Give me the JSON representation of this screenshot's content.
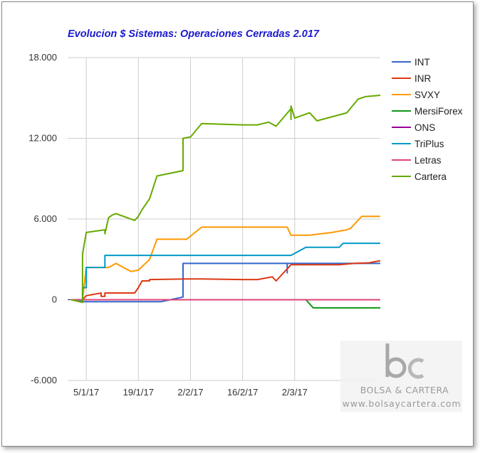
{
  "chart_data": {
    "type": "line",
    "title": "Evolucion $ Sistemas: Operaciones Cerradas 2.017",
    "xlabel": "",
    "ylabel": "",
    "ylim": [
      -6000,
      18000
    ],
    "yticks": [
      {
        "value": 18000,
        "label": "18.000"
      },
      {
        "value": 12000,
        "label": "12.000"
      },
      {
        "value": 6000,
        "label": "6.000"
      },
      {
        "value": 0,
        "label": "0"
      },
      {
        "value": -6000,
        "label": "-6.000"
      }
    ],
    "xrange": [
      "2016-12-31",
      "2017-03-25"
    ],
    "xticks": [
      {
        "date": "2017-01-05",
        "label": "5/1/17"
      },
      {
        "date": "2017-01-19",
        "label": "19/1/17"
      },
      {
        "date": "2017-02-02",
        "label": "2/2/17"
      },
      {
        "date": "2017-02-16",
        "label": "16/2/17"
      },
      {
        "date": "2017-03-02",
        "label": "2/3/17"
      }
    ],
    "grid": true,
    "legend_position": "right",
    "series": [
      {
        "name": "INT",
        "color": "#3366cc",
        "points": [
          [
            "2017-01-01",
            0
          ],
          [
            "2017-01-04",
            -150
          ],
          [
            "2017-01-25",
            -150
          ],
          [
            "2017-01-31",
            200
          ],
          [
            "2017-01-31",
            2700
          ],
          [
            "2017-02-28",
            2700
          ],
          [
            "2017-02-28",
            2000
          ],
          [
            "2017-02-28",
            2700
          ],
          [
            "2017-03-25",
            2700
          ]
        ]
      },
      {
        "name": "INR",
        "color": "#dc3912",
        "points": [
          [
            "2017-01-01",
            0
          ],
          [
            "2017-01-04",
            0
          ],
          [
            "2017-01-05",
            300
          ],
          [
            "2017-01-09",
            500
          ],
          [
            "2017-01-09",
            250
          ],
          [
            "2017-01-10",
            250
          ],
          [
            "2017-01-10",
            500
          ],
          [
            "2017-01-18",
            500
          ],
          [
            "2017-01-19",
            900
          ],
          [
            "2017-01-20",
            1400
          ],
          [
            "2017-01-22",
            1400
          ],
          [
            "2017-01-22",
            1500
          ],
          [
            "2017-02-02",
            1550
          ],
          [
            "2017-02-05",
            1550
          ],
          [
            "2017-02-16",
            1500
          ],
          [
            "2017-02-20",
            1500
          ],
          [
            "2017-02-24",
            1700
          ],
          [
            "2017-02-25",
            1400
          ],
          [
            "2017-03-01",
            2600
          ],
          [
            "2017-03-10",
            2600
          ],
          [
            "2017-03-14",
            2600
          ],
          [
            "2017-03-18",
            2700
          ],
          [
            "2017-03-22",
            2750
          ],
          [
            "2017-03-25",
            2900
          ]
        ]
      },
      {
        "name": "SVXY",
        "color": "#ff9900",
        "points": [
          [
            "2017-01-01",
            0
          ],
          [
            "2017-01-04",
            0
          ],
          [
            "2017-01-05",
            2400
          ],
          [
            "2017-01-11",
            2400
          ],
          [
            "2017-01-13",
            2700
          ],
          [
            "2017-01-17",
            2100
          ],
          [
            "2017-01-19",
            2200
          ],
          [
            "2017-01-22",
            3000
          ],
          [
            "2017-01-24",
            4500
          ],
          [
            "2017-02-01",
            4500
          ],
          [
            "2017-02-05",
            5400
          ],
          [
            "2017-02-28",
            5400
          ],
          [
            "2017-03-01",
            4800
          ],
          [
            "2017-03-06",
            4800
          ],
          [
            "2017-03-12",
            5000
          ],
          [
            "2017-03-16",
            5200
          ],
          [
            "2017-03-17",
            5300
          ],
          [
            "2017-03-20",
            6200
          ],
          [
            "2017-03-25",
            6200
          ]
        ]
      },
      {
        "name": "MersiForex",
        "color": "#109618",
        "points": [
          [
            "2017-01-01",
            0
          ],
          [
            "2017-03-05",
            0
          ],
          [
            "2017-03-07",
            -600
          ],
          [
            "2017-03-25",
            -600
          ]
        ]
      },
      {
        "name": "ONS",
        "color": "#990099",
        "points": [
          [
            "2017-01-01",
            0
          ],
          [
            "2017-03-25",
            0
          ]
        ]
      },
      {
        "name": "TriPlus",
        "color": "#0099c6",
        "points": [
          [
            "2017-01-01",
            0
          ],
          [
            "2017-01-04",
            -100
          ],
          [
            "2017-01-04",
            900
          ],
          [
            "2017-01-05",
            900
          ],
          [
            "2017-01-05",
            2400
          ],
          [
            "2017-01-10",
            2400
          ],
          [
            "2017-01-10",
            3300
          ],
          [
            "2017-03-01",
            3300
          ],
          [
            "2017-03-05",
            3900
          ],
          [
            "2017-03-14",
            3900
          ],
          [
            "2017-03-15",
            4200
          ],
          [
            "2017-03-25",
            4200
          ]
        ]
      },
      {
        "name": "Letras",
        "color": "#dd4477",
        "points": [
          [
            "2017-01-01",
            0
          ],
          [
            "2017-03-25",
            0
          ]
        ]
      },
      {
        "name": "Cartera",
        "color": "#66aa00",
        "points": [
          [
            "2017-01-01",
            0
          ],
          [
            "2017-01-04",
            -200
          ],
          [
            "2017-01-04",
            3400
          ],
          [
            "2017-01-05",
            5000
          ],
          [
            "2017-01-10",
            5200
          ],
          [
            "2017-01-10",
            4900
          ],
          [
            "2017-01-11",
            6100
          ],
          [
            "2017-01-12",
            6300
          ],
          [
            "2017-01-13",
            6400
          ],
          [
            "2017-01-18",
            5900
          ],
          [
            "2017-01-19",
            6200
          ],
          [
            "2017-01-20",
            6700
          ],
          [
            "2017-01-22",
            7500
          ],
          [
            "2017-01-24",
            9200
          ],
          [
            "2017-01-31",
            9600
          ],
          [
            "2017-01-31",
            12000
          ],
          [
            "2017-02-02",
            12100
          ],
          [
            "2017-02-05",
            13100
          ],
          [
            "2017-02-16",
            13000
          ],
          [
            "2017-02-20",
            13000
          ],
          [
            "2017-02-23",
            13200
          ],
          [
            "2017-02-25",
            12900
          ],
          [
            "2017-03-01",
            14200
          ],
          [
            "2017-03-01",
            13400
          ],
          [
            "2017-03-01",
            14400
          ],
          [
            "2017-03-02",
            13500
          ],
          [
            "2017-03-06",
            13900
          ],
          [
            "2017-03-08",
            13300
          ],
          [
            "2017-03-16",
            13900
          ],
          [
            "2017-03-19",
            14900
          ],
          [
            "2017-03-21",
            15100
          ],
          [
            "2017-03-25",
            15200
          ]
        ]
      }
    ]
  },
  "watermark": {
    "logo": "bc",
    "brand": "BOLSA & CARTERA",
    "url": "www.bolsaycartera.com"
  }
}
